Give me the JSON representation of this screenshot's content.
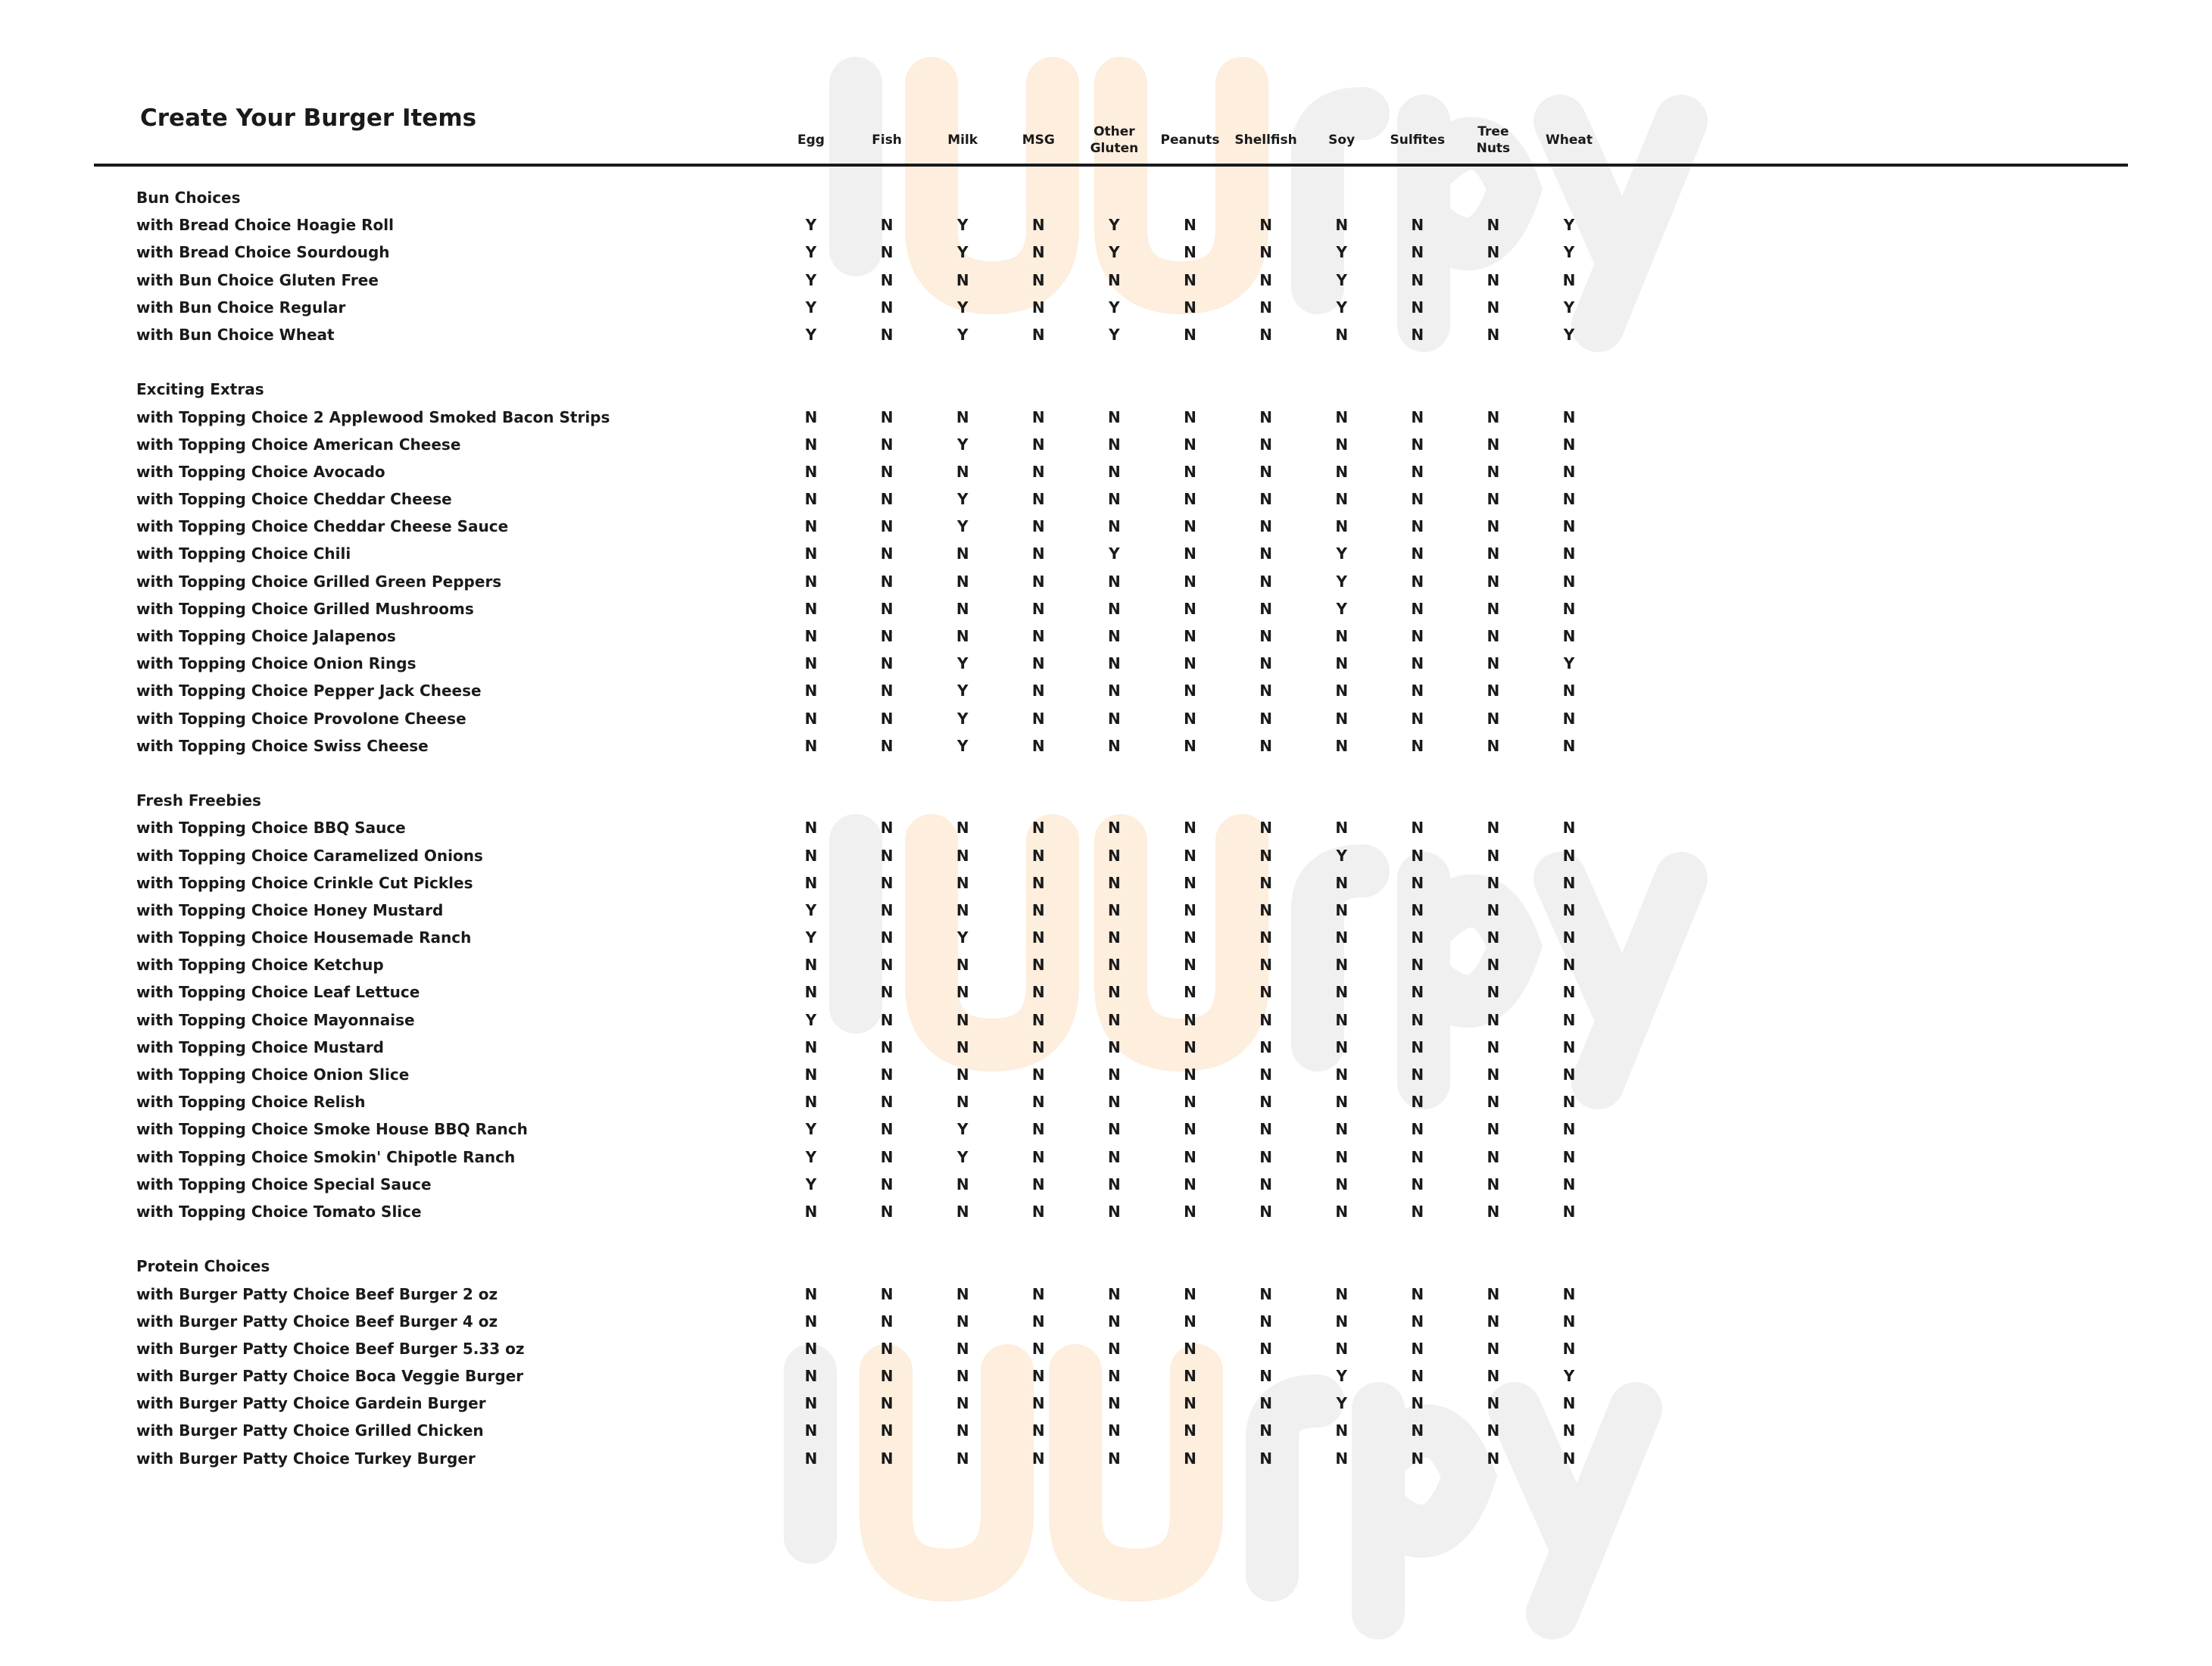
{
  "title": "Create Your Burger Items",
  "watermark": "sluurpy",
  "columns": [
    "Egg",
    "Fish",
    "Milk",
    "MSG",
    "Other Gluten",
    "Peanuts",
    "Shellfish",
    "Soy",
    "Sulfites",
    "Tree Nuts",
    "Wheat"
  ],
  "sections": [
    {
      "name": "Bun Choices",
      "items": [
        {
          "label": "with Bread Choice Hoagie Roll",
          "values": [
            "Y",
            "N",
            "Y",
            "N",
            "Y",
            "N",
            "N",
            "N",
            "N",
            "N",
            "Y"
          ]
        },
        {
          "label": "with Bread Choice Sourdough",
          "values": [
            "Y",
            "N",
            "Y",
            "N",
            "Y",
            "N",
            "N",
            "Y",
            "N",
            "N",
            "Y"
          ]
        },
        {
          "label": "with Bun Choice Gluten Free",
          "values": [
            "Y",
            "N",
            "N",
            "N",
            "N",
            "N",
            "N",
            "Y",
            "N",
            "N",
            "N"
          ]
        },
        {
          "label": "with Bun Choice Regular",
          "values": [
            "Y",
            "N",
            "Y",
            "N",
            "Y",
            "N",
            "N",
            "Y",
            "N",
            "N",
            "Y"
          ]
        },
        {
          "label": "with Bun Choice Wheat",
          "values": [
            "Y",
            "N",
            "Y",
            "N",
            "Y",
            "N",
            "N",
            "N",
            "N",
            "N",
            "Y"
          ]
        }
      ]
    },
    {
      "name": "Exciting Extras",
      "items": [
        {
          "label": "with Topping Choice 2 Applewood Smoked Bacon Strips",
          "values": [
            "N",
            "N",
            "N",
            "N",
            "N",
            "N",
            "N",
            "N",
            "N",
            "N",
            "N"
          ]
        },
        {
          "label": "with Topping Choice American Cheese",
          "values": [
            "N",
            "N",
            "Y",
            "N",
            "N",
            "N",
            "N",
            "N",
            "N",
            "N",
            "N"
          ]
        },
        {
          "label": "with Topping Choice Avocado",
          "values": [
            "N",
            "N",
            "N",
            "N",
            "N",
            "N",
            "N",
            "N",
            "N",
            "N",
            "N"
          ]
        },
        {
          "label": "with Topping Choice Cheddar Cheese",
          "values": [
            "N",
            "N",
            "Y",
            "N",
            "N",
            "N",
            "N",
            "N",
            "N",
            "N",
            "N"
          ]
        },
        {
          "label": "with Topping Choice Cheddar Cheese Sauce",
          "values": [
            "N",
            "N",
            "Y",
            "N",
            "N",
            "N",
            "N",
            "N",
            "N",
            "N",
            "N"
          ]
        },
        {
          "label": "with Topping Choice Chili",
          "values": [
            "N",
            "N",
            "N",
            "N",
            "Y",
            "N",
            "N",
            "Y",
            "N",
            "N",
            "N"
          ]
        },
        {
          "label": "with Topping Choice Grilled Green Peppers",
          "values": [
            "N",
            "N",
            "N",
            "N",
            "N",
            "N",
            "N",
            "Y",
            "N",
            "N",
            "N"
          ]
        },
        {
          "label": "with Topping Choice Grilled Mushrooms",
          "values": [
            "N",
            "N",
            "N",
            "N",
            "N",
            "N",
            "N",
            "Y",
            "N",
            "N",
            "N"
          ]
        },
        {
          "label": "with Topping Choice Jalapenos",
          "values": [
            "N",
            "N",
            "N",
            "N",
            "N",
            "N",
            "N",
            "N",
            "N",
            "N",
            "N"
          ]
        },
        {
          "label": "with Topping Choice Onion Rings",
          "values": [
            "N",
            "N",
            "Y",
            "N",
            "N",
            "N",
            "N",
            "N",
            "N",
            "N",
            "Y"
          ]
        },
        {
          "label": "with Topping Choice Pepper Jack Cheese",
          "values": [
            "N",
            "N",
            "Y",
            "N",
            "N",
            "N",
            "N",
            "N",
            "N",
            "N",
            "N"
          ]
        },
        {
          "label": "with Topping Choice Provolone Cheese",
          "values": [
            "N",
            "N",
            "Y",
            "N",
            "N",
            "N",
            "N",
            "N",
            "N",
            "N",
            "N"
          ]
        },
        {
          "label": "with Topping Choice Swiss Cheese",
          "values": [
            "N",
            "N",
            "Y",
            "N",
            "N",
            "N",
            "N",
            "N",
            "N",
            "N",
            "N"
          ]
        }
      ]
    },
    {
      "name": "Fresh Freebies",
      "items": [
        {
          "label": "with Topping Choice BBQ Sauce",
          "values": [
            "N",
            "N",
            "N",
            "N",
            "N",
            "N",
            "N",
            "N",
            "N",
            "N",
            "N"
          ]
        },
        {
          "label": "with Topping Choice Caramelized Onions",
          "values": [
            "N",
            "N",
            "N",
            "N",
            "N",
            "N",
            "N",
            "Y",
            "N",
            "N",
            "N"
          ]
        },
        {
          "label": "with Topping Choice Crinkle Cut Pickles",
          "values": [
            "N",
            "N",
            "N",
            "N",
            "N",
            "N",
            "N",
            "N",
            "N",
            "N",
            "N"
          ]
        },
        {
          "label": "with Topping Choice Honey Mustard",
          "values": [
            "Y",
            "N",
            "N",
            "N",
            "N",
            "N",
            "N",
            "N",
            "N",
            "N",
            "N"
          ]
        },
        {
          "label": "with Topping Choice Housemade Ranch",
          "values": [
            "Y",
            "N",
            "Y",
            "N",
            "N",
            "N",
            "N",
            "N",
            "N",
            "N",
            "N"
          ]
        },
        {
          "label": "with Topping Choice Ketchup",
          "values": [
            "N",
            "N",
            "N",
            "N",
            "N",
            "N",
            "N",
            "N",
            "N",
            "N",
            "N"
          ]
        },
        {
          "label": "with Topping Choice Leaf Lettuce",
          "values": [
            "N",
            "N",
            "N",
            "N",
            "N",
            "N",
            "N",
            "N",
            "N",
            "N",
            "N"
          ]
        },
        {
          "label": "with Topping Choice Mayonnaise",
          "values": [
            "Y",
            "N",
            "N",
            "N",
            "N",
            "N",
            "N",
            "N",
            "N",
            "N",
            "N"
          ]
        },
        {
          "label": "with Topping Choice Mustard",
          "values": [
            "N",
            "N",
            "N",
            "N",
            "N",
            "N",
            "N",
            "N",
            "N",
            "N",
            "N"
          ]
        },
        {
          "label": "with Topping Choice Onion Slice",
          "values": [
            "N",
            "N",
            "N",
            "N",
            "N",
            "N",
            "N",
            "N",
            "N",
            "N",
            "N"
          ]
        },
        {
          "label": "with Topping Choice Relish",
          "values": [
            "N",
            "N",
            "N",
            "N",
            "N",
            "N",
            "N",
            "N",
            "N",
            "N",
            "N"
          ]
        },
        {
          "label": "with Topping Choice Smoke House BBQ Ranch",
          "values": [
            "Y",
            "N",
            "Y",
            "N",
            "N",
            "N",
            "N",
            "N",
            "N",
            "N",
            "N"
          ]
        },
        {
          "label": "with Topping Choice Smokin' Chipotle Ranch",
          "values": [
            "Y",
            "N",
            "Y",
            "N",
            "N",
            "N",
            "N",
            "N",
            "N",
            "N",
            "N"
          ]
        },
        {
          "label": "with Topping Choice Special Sauce",
          "values": [
            "Y",
            "N",
            "N",
            "N",
            "N",
            "N",
            "N",
            "N",
            "N",
            "N",
            "N"
          ]
        },
        {
          "label": "with Topping Choice Tomato Slice",
          "values": [
            "N",
            "N",
            "N",
            "N",
            "N",
            "N",
            "N",
            "N",
            "N",
            "N",
            "N"
          ]
        }
      ]
    },
    {
      "name": "Protein Choices",
      "items": [
        {
          "label": "with Burger Patty Choice Beef Burger 2 oz",
          "values": [
            "N",
            "N",
            "N",
            "N",
            "N",
            "N",
            "N",
            "N",
            "N",
            "N",
            "N"
          ]
        },
        {
          "label": "with Burger Patty Choice Beef Burger 4 oz",
          "values": [
            "N",
            "N",
            "N",
            "N",
            "N",
            "N",
            "N",
            "N",
            "N",
            "N",
            "N"
          ]
        },
        {
          "label": "with Burger Patty Choice Beef Burger 5.33 oz",
          "values": [
            "N",
            "N",
            "N",
            "N",
            "N",
            "N",
            "N",
            "N",
            "N",
            "N",
            "N"
          ]
        },
        {
          "label": "with Burger Patty Choice Boca Veggie Burger",
          "values": [
            "N",
            "N",
            "N",
            "N",
            "N",
            "N",
            "N",
            "Y",
            "N",
            "N",
            "Y"
          ]
        },
        {
          "label": "with Burger Patty Choice Gardein Burger",
          "values": [
            "N",
            "N",
            "N",
            "N",
            "N",
            "N",
            "N",
            "Y",
            "N",
            "N",
            "N"
          ]
        },
        {
          "label": "with Burger Patty Choice Grilled Chicken",
          "values": [
            "N",
            "N",
            "N",
            "N",
            "N",
            "N",
            "N",
            "N",
            "N",
            "N",
            "N"
          ]
        },
        {
          "label": "with Burger Patty Choice Turkey Burger",
          "values": [
            "N",
            "N",
            "N",
            "N",
            "N",
            "N",
            "N",
            "N",
            "N",
            "N",
            "N"
          ]
        }
      ]
    }
  ]
}
